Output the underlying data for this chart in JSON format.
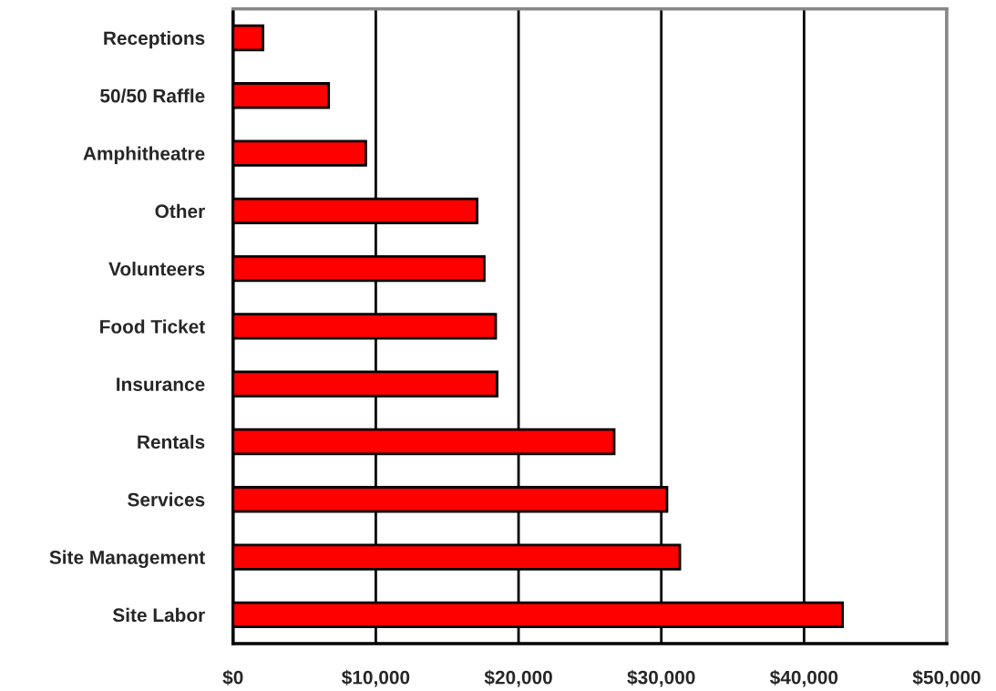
{
  "chart_data": {
    "type": "bar",
    "orientation": "horizontal",
    "categories": [
      "Receptions",
      "50/50 Raffle",
      "Amphitheatre",
      "Other",
      "Volunteers",
      "Food Ticket",
      "Insurance",
      "Rentals",
      "Services",
      "Site Management",
      "Site Labor"
    ],
    "values": [
      2100,
      6700,
      9300,
      17100,
      17600,
      18400,
      18500,
      26700,
      30400,
      31300,
      42700
    ],
    "color": "#ff0000",
    "xlim": [
      0,
      50000
    ],
    "xticks": [
      {
        "value": 0,
        "label": "$0"
      },
      {
        "value": 10000,
        "label": "$10,000"
      },
      {
        "value": 20000,
        "label": "$20,000"
      },
      {
        "value": 30000,
        "label": "$30,000"
      },
      {
        "value": 40000,
        "label": "$40,000"
      },
      {
        "value": 50000,
        "label": "$50,000"
      }
    ],
    "grid": "x",
    "legend": false
  }
}
